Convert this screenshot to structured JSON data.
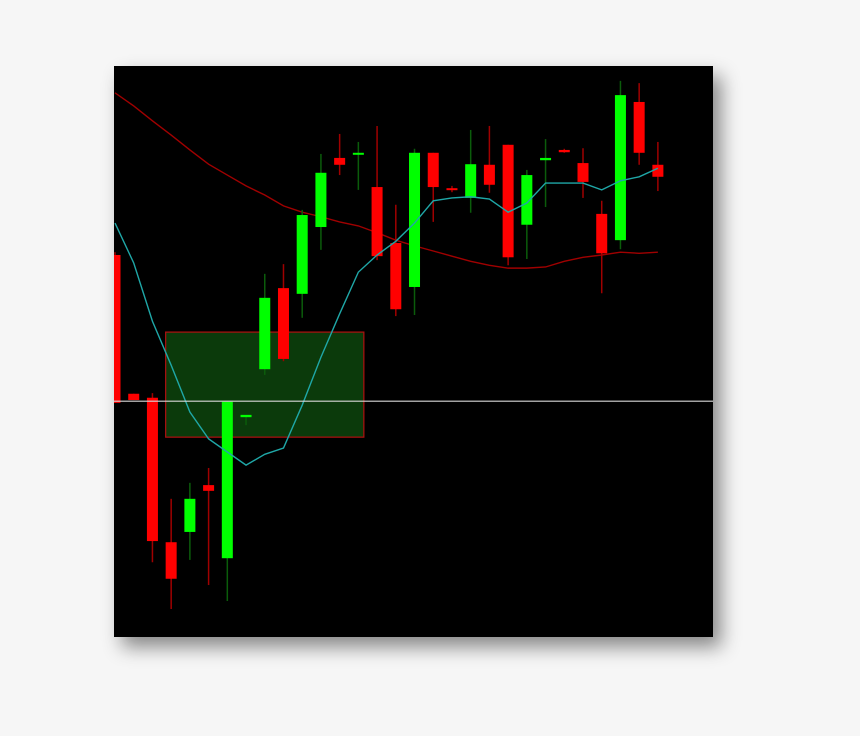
{
  "chart_data": {
    "type": "candlestick",
    "title": "",
    "xlabel": "",
    "ylabel": "",
    "ylim": [
      0,
      100
    ],
    "grid": false,
    "colors": {
      "background": "#000000",
      "bull_body": "#00ff00",
      "bull_wick": "#0b5c0b",
      "bear_body": "#ff0000",
      "bear_wick": "#a00000",
      "fast_ma": "#1fa7a7",
      "slow_ma": "#a00000",
      "zone_fill": "#0b3a0b",
      "zone_border": "#b01010",
      "level_line": "#d8d8d8"
    },
    "candles": [
      {
        "o": 66.9,
        "h": 67.4,
        "l": 41.0,
        "c": 41.0
      },
      {
        "o": 42.6,
        "h": 42.6,
        "l": 41.5,
        "c": 41.5
      },
      {
        "o": 41.9,
        "h": 42.7,
        "l": 13.1,
        "c": 16.8
      },
      {
        "o": 16.6,
        "h": 24.2,
        "l": 4.9,
        "c": 10.2
      },
      {
        "o": 18.4,
        "h": 27.0,
        "l": 13.5,
        "c": 24.2
      },
      {
        "o": 26.6,
        "h": 29.6,
        "l": 9.1,
        "c": 25.6
      },
      {
        "o": 13.8,
        "h": 41.2,
        "l": 6.3,
        "c": 41.2
      },
      {
        "o": 38.5,
        "h": 38.9,
        "l": 37.1,
        "c": 38.9
      },
      {
        "o": 46.9,
        "h": 63.6,
        "l": 45.9,
        "c": 59.4
      },
      {
        "o": 61.1,
        "h": 65.3,
        "l": 48.3,
        "c": 48.7
      },
      {
        "o": 60.1,
        "h": 74.8,
        "l": 55.9,
        "c": 73.9
      },
      {
        "o": 71.8,
        "h": 84.6,
        "l": 67.8,
        "c": 81.3
      },
      {
        "o": 83.9,
        "h": 88.1,
        "l": 80.9,
        "c": 82.7
      },
      {
        "o": 84.6,
        "h": 86.7,
        "l": 78.3,
        "c": 84.8
      },
      {
        "o": 78.8,
        "h": 89.5,
        "l": 66.0,
        "c": 66.7
      },
      {
        "o": 69.0,
        "h": 75.7,
        "l": 56.2,
        "c": 57.4
      },
      {
        "o": 61.3,
        "h": 85.5,
        "l": 56.4,
        "c": 84.8
      },
      {
        "o": 84.8,
        "h": 84.8,
        "l": 72.7,
        "c": 78.8
      },
      {
        "o": 78.6,
        "h": 79.0,
        "l": 77.9,
        "c": 78.3
      },
      {
        "o": 76.9,
        "h": 88.8,
        "l": 74.3,
        "c": 82.8
      },
      {
        "o": 82.7,
        "h": 89.5,
        "l": 77.8,
        "c": 79.2
      },
      {
        "o": 86.2,
        "h": 86.2,
        "l": 65.1,
        "c": 66.5
      },
      {
        "o": 72.2,
        "h": 81.8,
        "l": 66.2,
        "c": 80.9
      },
      {
        "o": 83.5,
        "h": 87.2,
        "l": 75.3,
        "c": 83.9
      },
      {
        "o": 85.3,
        "h": 85.5,
        "l": 84.8,
        "c": 84.9
      },
      {
        "o": 83.0,
        "h": 85.6,
        "l": 76.9,
        "c": 79.7
      },
      {
        "o": 74.1,
        "h": 76.4,
        "l": 60.2,
        "c": 67.2
      },
      {
        "o": 69.5,
        "h": 97.4,
        "l": 67.9,
        "c": 94.9
      },
      {
        "o": 93.7,
        "h": 97.0,
        "l": 82.7,
        "c": 84.8
      },
      {
        "o": 82.7,
        "h": 86.7,
        "l": 78.1,
        "c": 80.6
      }
    ],
    "fast_ma": [
      72.5,
      65.5,
      55.3,
      47.6,
      39.4,
      34.7,
      32.4,
      30.1,
      32.0,
      33.1,
      40.6,
      49.0,
      56.6,
      63.9,
      66.9,
      69.3,
      72.5,
      76.4,
      76.9,
      77.1,
      76.7,
      74.4,
      76.0,
      79.5,
      79.5,
      79.5,
      78.3,
      79.9,
      80.6,
      82.1
    ],
    "slow_ma": [
      95.3,
      93.0,
      90.4,
      87.9,
      85.3,
      82.8,
      80.9,
      79.0,
      77.4,
      75.5,
      74.4,
      73.6,
      72.7,
      72.0,
      70.8,
      69.5,
      68.5,
      67.6,
      66.7,
      65.8,
      65.1,
      64.6,
      64.6,
      64.8,
      65.8,
      66.5,
      66.9,
      67.4,
      67.2,
      67.4
    ],
    "zone": {
      "from_candle": 4,
      "to_candle": 14,
      "top": 53.4,
      "bottom": 35.0
    },
    "level_line": 41.3
  }
}
